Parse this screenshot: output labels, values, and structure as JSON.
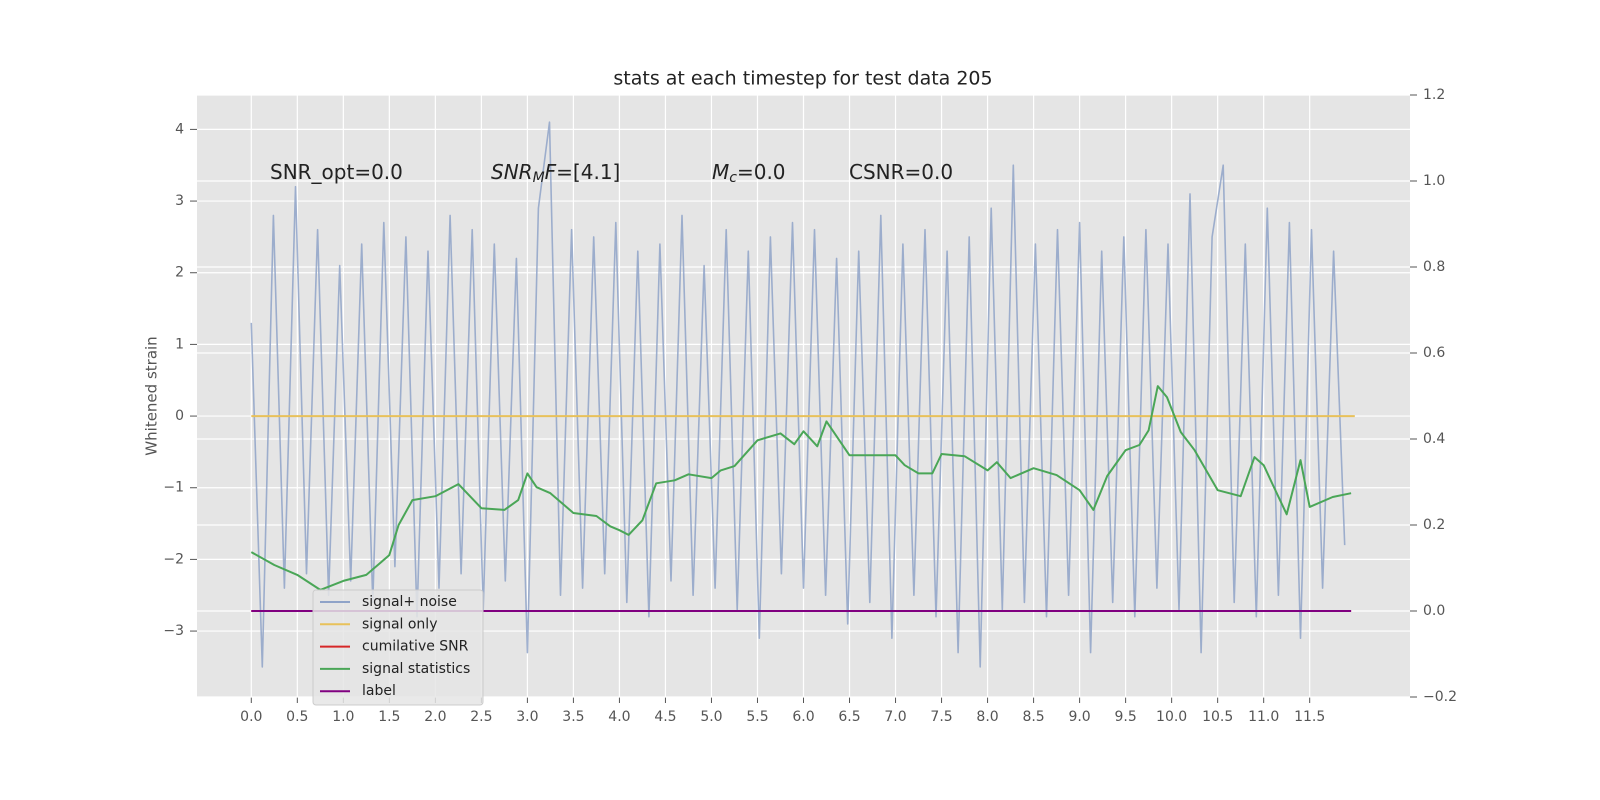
{
  "chart_data": {
    "type": "line",
    "title": "stats at each timestep for test data 205",
    "ylabel": "Whitened strain",
    "xlim": [
      -0.59,
      12.59
    ],
    "ylim": [
      -3.92,
      4.48
    ],
    "y2lim": [
      -0.2,
      1.2
    ],
    "xticks": [
      {
        "value": 0,
        "label": "0.0"
      },
      0.5,
      {
        "value": 1,
        "label": "1.0"
      },
      1.5,
      {
        "value": 2,
        "label": "2.0"
      },
      2.5,
      {
        "value": 3,
        "label": "3.0"
      },
      3.5,
      {
        "value": 4,
        "label": "4.0"
      },
      4.5,
      {
        "value": 5,
        "label": "5.0"
      },
      5.5,
      {
        "value": 6,
        "label": "6.0"
      },
      6.5,
      {
        "value": 7,
        "label": "7.0"
      },
      7.5,
      {
        "value": 8,
        "label": "8.0"
      },
      8.5,
      {
        "value": 9,
        "label": "9.0"
      },
      9.5,
      {
        "value": 10,
        "label": "10.0"
      },
      10.5,
      {
        "value": 11,
        "label": "11.0"
      },
      11.5
    ],
    "yticks": [
      4,
      3,
      2,
      1,
      0,
      {
        "value": -1,
        "label": "−1"
      },
      {
        "value": -2,
        "label": "−2"
      },
      {
        "value": -3,
        "label": "−3"
      }
    ],
    "y2ticks": [
      1.2,
      {
        "value": 1,
        "label": "1.0"
      },
      0.8,
      0.6,
      0.4,
      0.2,
      {
        "value": 0,
        "label": "0.0"
      },
      {
        "value": -0.2,
        "label": "−0.2"
      }
    ],
    "grid": true,
    "legend_loc": "lower left",
    "annotations": [
      [
        {
          "text": "SNR_opt=0.0"
        }
      ],
      [
        {
          "text": "SNR",
          "italic": true
        },
        {
          "text": "M",
          "italic": true,
          "sub": true
        },
        {
          "text": "F",
          "italic": true
        },
        {
          "text": "=[4.1]"
        }
      ],
      [
        {
          "text": "M",
          "italic": true
        },
        {
          "text": "c",
          "italic": true,
          "sub": true
        },
        {
          "text": "=0.0"
        }
      ],
      [
        {
          "text": "CSNR=0.0"
        }
      ]
    ],
    "series": [
      {
        "name": "signal+ noise",
        "color": "#8fa3c8",
        "x": [
          0,
          0.12,
          0.24,
          0.36,
          0.48,
          0.6,
          0.72,
          0.84,
          0.96,
          1.08,
          1.2,
          1.32,
          1.44,
          1.56,
          1.68,
          1.8,
          1.92,
          2.04,
          2.16,
          2.28,
          2.4,
          2.52,
          2.64,
          2.76,
          2.88,
          3,
          3.12,
          3.24,
          3.36,
          3.48,
          3.6,
          3.72,
          3.84,
          3.96,
          4.08,
          4.2,
          4.32,
          4.44,
          4.56,
          4.68,
          4.8,
          4.92,
          5.04,
          5.16,
          5.28,
          5.4,
          5.52,
          5.64,
          5.76,
          5.88,
          6,
          6.12,
          6.24,
          6.36,
          6.48,
          6.6,
          6.72,
          6.84,
          6.96,
          7.08,
          7.2,
          7.32,
          7.44,
          7.56,
          7.68,
          7.8,
          7.92,
          8.04,
          8.16,
          8.28,
          8.4,
          8.52,
          8.64,
          8.76,
          8.88,
          9,
          9.12,
          9.24,
          9.36,
          9.48,
          9.6,
          9.72,
          9.84,
          9.96,
          10.08,
          10.2,
          10.32,
          10.44,
          10.56,
          10.68,
          10.8,
          10.92,
          11.04,
          11.16,
          11.28,
          11.4,
          11.52,
          11.64,
          11.76,
          11.88
        ],
        "values": [
          1.3,
          -3.5,
          2.8,
          -2.4,
          3.2,
          -2.2,
          2.6,
          -2.5,
          2.1,
          -2.3,
          2.4,
          -2.6,
          2.7,
          -2.1,
          2.5,
          -2.8,
          2.3,
          -2.4,
          2.8,
          -2.2,
          2.6,
          -2.7,
          2.4,
          -2.3,
          2.2,
          -3.3,
          2.9,
          4.1,
          -2.5,
          2.6,
          -2.4,
          2.5,
          -2.2,
          2.7,
          -2.6,
          2.3,
          -2.8,
          2.4,
          -2.3,
          2.8,
          -2.5,
          2.1,
          -2.4,
          2.6,
          -2.7,
          2.3,
          -3.1,
          2.5,
          -2.2,
          2.7,
          -2.4,
          2.6,
          -2.5,
          2.2,
          -2.9,
          2.3,
          -2.6,
          2.8,
          -3.1,
          2.4,
          -2.5,
          2.6,
          -2.8,
          2.3,
          -3.3,
          2.5,
          -3.5,
          2.9,
          -2.7,
          3.5,
          -2.6,
          2.4,
          -2.8,
          2.6,
          -2.5,
          2.7,
          -3.3,
          2.3,
          -2.6,
          2.5,
          -2.8,
          2.6,
          -2.4,
          2.4,
          -2.7,
          3.1,
          -3.3,
          2.5,
          3.5,
          -2.6,
          2.4,
          -2.8,
          2.9,
          -2.5,
          2.7,
          -3.1,
          2.6,
          -2.4,
          2.3,
          -1.8
        ]
      },
      {
        "name": "signal only",
        "color": "#e8c15a",
        "x": [
          0,
          11.99
        ],
        "values": [
          0,
          0
        ]
      },
      {
        "name": "cumilative SNR",
        "color": "#d62728",
        "axis": "y2",
        "x": [
          0,
          11.95
        ],
        "values": [
          0,
          0
        ]
      },
      {
        "name": "signal statistics",
        "color": "#4aa657",
        "axis": "y2",
        "x": [
          0,
          0.25,
          0.5,
          0.75,
          1,
          1.25,
          1.5,
          1.6,
          1.75,
          2,
          2.25,
          2.5,
          2.75,
          2.9,
          3,
          3.1,
          3.25,
          3.5,
          3.75,
          3.9,
          4,
          4.1,
          4.25,
          4.4,
          4.6,
          4.75,
          5,
          5.1,
          5.25,
          5.5,
          5.75,
          5.9,
          6,
          6.15,
          6.25,
          6.5,
          6.75,
          7,
          7.1,
          7.25,
          7.4,
          7.5,
          7.75,
          8,
          8.1,
          8.25,
          8.5,
          8.75,
          9,
          9.15,
          9.3,
          9.5,
          9.65,
          9.75,
          9.85,
          9.95,
          10.1,
          10.25,
          10.5,
          10.75,
          10.9,
          11,
          11.1,
          11.25,
          11.4,
          11.5,
          11.75,
          11.95
        ],
        "values": [
          0.137,
          0.107,
          0.084,
          0.049,
          0.07,
          0.084,
          0.13,
          0.2,
          0.258,
          0.267,
          0.295,
          0.239,
          0.235,
          0.258,
          0.32,
          0.288,
          0.274,
          0.228,
          0.221,
          0.197,
          0.188,
          0.177,
          0.211,
          0.297,
          0.304,
          0.318,
          0.309,
          0.327,
          0.337,
          0.397,
          0.413,
          0.388,
          0.418,
          0.383,
          0.441,
          0.362,
          0.362,
          0.362,
          0.339,
          0.32,
          0.32,
          0.365,
          0.36,
          0.327,
          0.346,
          0.309,
          0.332,
          0.316,
          0.281,
          0.235,
          0.314,
          0.374,
          0.386,
          0.42,
          0.523,
          0.497,
          0.416,
          0.374,
          0.281,
          0.267,
          0.358,
          0.339,
          0.293,
          0.225,
          0.351,
          0.242,
          0.265,
          0.274
        ]
      },
      {
        "name": "label",
        "color": "#800080",
        "axis": "y2",
        "x": [
          0,
          11.95
        ],
        "values": [
          0,
          0
        ]
      }
    ]
  }
}
